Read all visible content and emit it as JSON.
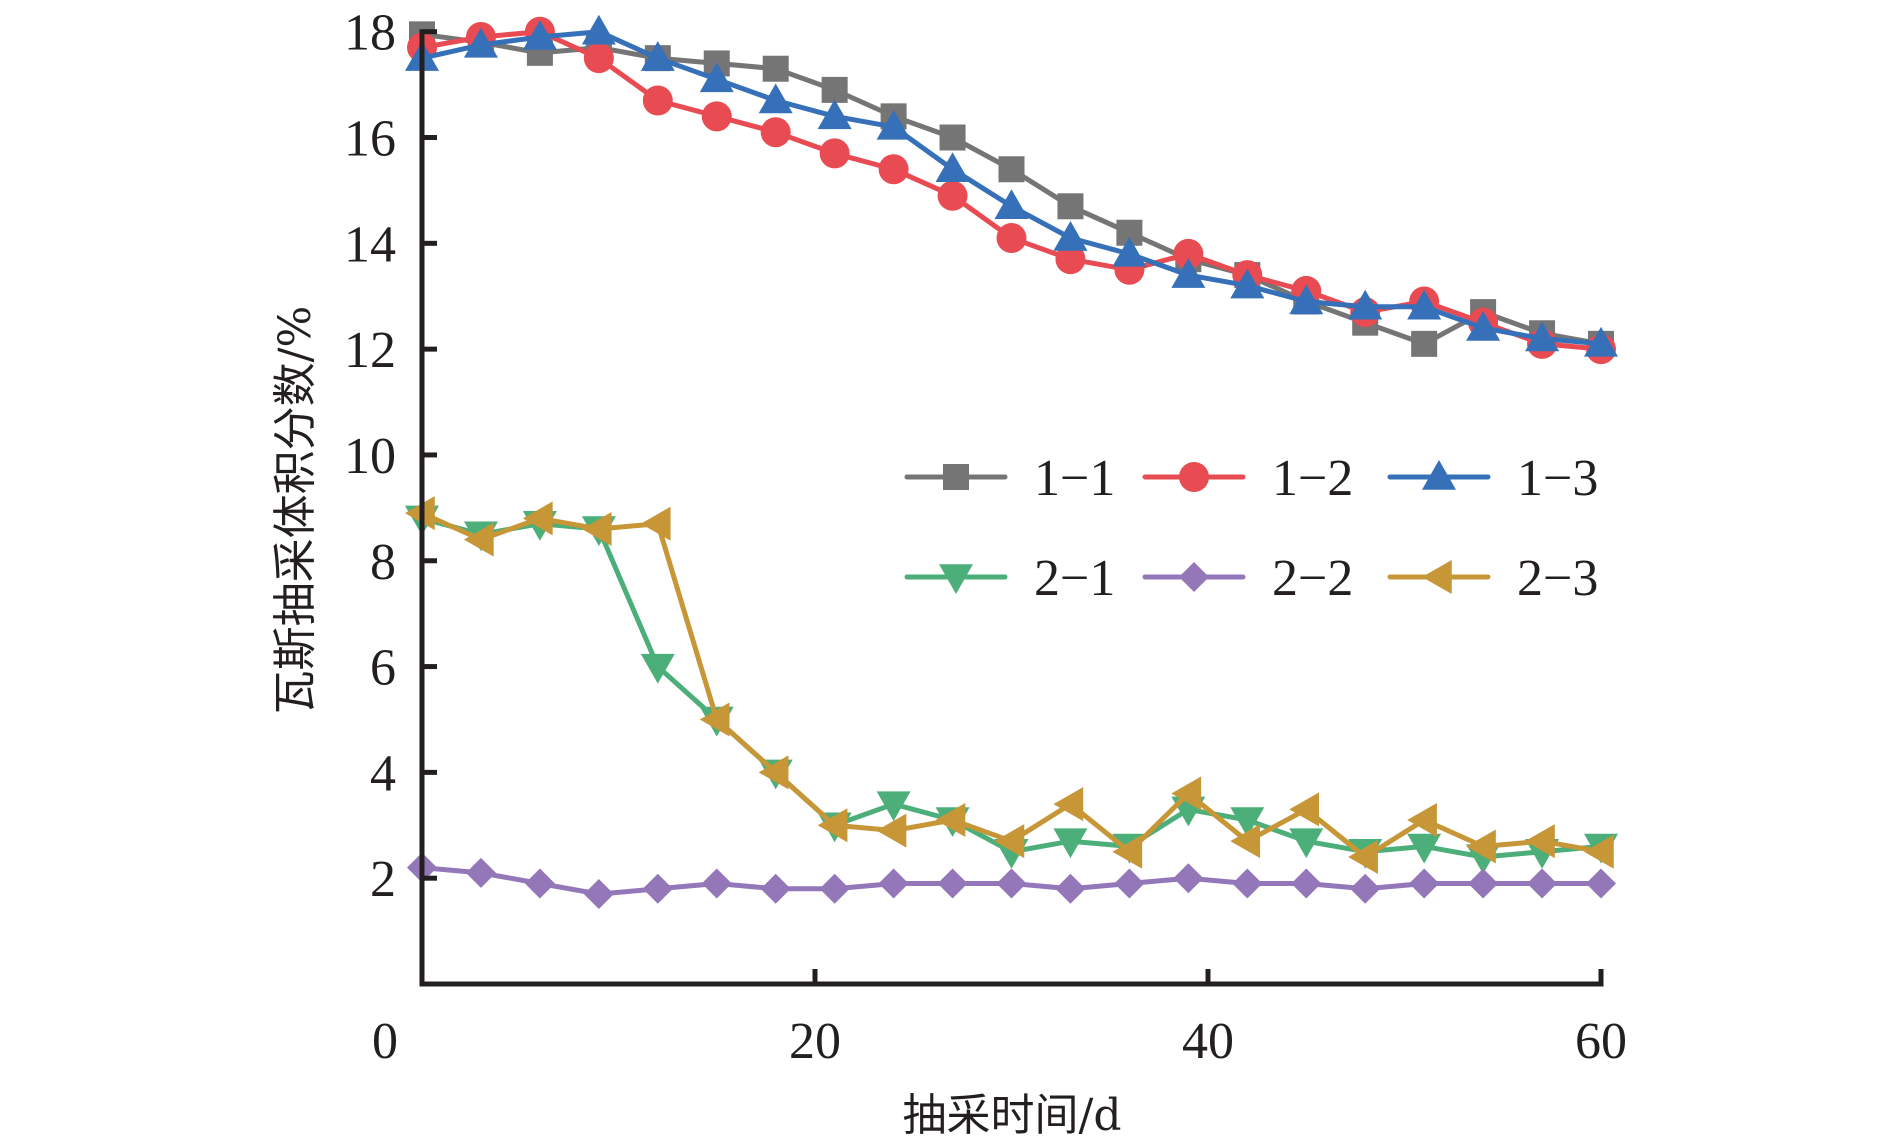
{
  "chart_data": {
    "type": "line",
    "title": "",
    "xlabel": "抽采时间/d",
    "ylabel": "瓦斯抽采体积分数/%",
    "xlim": [
      0,
      60
    ],
    "ylim": [
      0,
      18
    ],
    "xticks": [
      0,
      20,
      40,
      60
    ],
    "xtick_labels": [
      "0",
      "20",
      "40",
      "60"
    ],
    "yticks": [
      2,
      4,
      6,
      8,
      10,
      12,
      14,
      16,
      18
    ],
    "ytick_labels": [
      "2",
      "4",
      "6",
      "8",
      "10",
      "12",
      "14",
      "16",
      "18"
    ],
    "grid": false,
    "legend_position": "center-right",
    "x": [
      0,
      3,
      6,
      9,
      12,
      15,
      18,
      21,
      24,
      27,
      30,
      33,
      36,
      39,
      42,
      45,
      48,
      51,
      54,
      57,
      60
    ],
    "series": [
      {
        "name": "1−1",
        "color": "#757575",
        "marker": "square",
        "values": [
          17.95,
          17.8,
          17.6,
          17.7,
          17.5,
          17.4,
          17.3,
          16.9,
          16.4,
          16.0,
          15.4,
          14.7,
          14.2,
          13.7,
          13.4,
          12.9,
          12.5,
          12.1,
          12.7,
          12.3,
          12.1
        ]
      },
      {
        "name": "1−2",
        "color": "#e84b52",
        "marker": "circle",
        "values": [
          17.7,
          17.9,
          18.0,
          17.5,
          16.7,
          16.4,
          16.1,
          15.7,
          15.4,
          14.9,
          14.1,
          13.7,
          13.5,
          13.8,
          13.4,
          13.1,
          12.7,
          12.9,
          12.5,
          12.1,
          12.0
        ]
      },
      {
        "name": "1−3",
        "color": "#3670b9",
        "marker": "triangle-up",
        "values": [
          17.5,
          17.75,
          17.9,
          18.0,
          17.5,
          17.1,
          16.7,
          16.4,
          16.2,
          15.4,
          14.7,
          14.1,
          13.8,
          13.4,
          13.2,
          12.9,
          12.8,
          12.8,
          12.4,
          12.2,
          12.1
        ]
      },
      {
        "name": "2−1",
        "color": "#4caf7a",
        "marker": "triangle-down",
        "values": [
          8.8,
          8.5,
          8.7,
          8.6,
          6.0,
          5.0,
          4.0,
          3.0,
          3.4,
          3.1,
          2.5,
          2.7,
          2.6,
          3.3,
          3.1,
          2.7,
          2.5,
          2.6,
          2.4,
          2.5,
          2.6
        ]
      },
      {
        "name": "2−2",
        "color": "#9377b8",
        "marker": "diamond",
        "values": [
          2.2,
          2.1,
          1.9,
          1.7,
          1.8,
          1.9,
          1.8,
          1.8,
          1.9,
          1.9,
          1.9,
          1.8,
          1.9,
          2.0,
          1.9,
          1.9,
          1.8,
          1.9,
          1.9,
          1.9,
          1.9
        ]
      },
      {
        "name": "2−3",
        "color": "#c79637",
        "marker": "triangle-left",
        "values": [
          8.9,
          8.4,
          8.8,
          8.6,
          8.7,
          5.0,
          4.0,
          3.0,
          2.9,
          3.1,
          2.7,
          3.4,
          2.5,
          3.6,
          2.7,
          3.3,
          2.4,
          3.1,
          2.6,
          2.7,
          2.5
        ]
      }
    ],
    "axis_color": "#231f20"
  }
}
